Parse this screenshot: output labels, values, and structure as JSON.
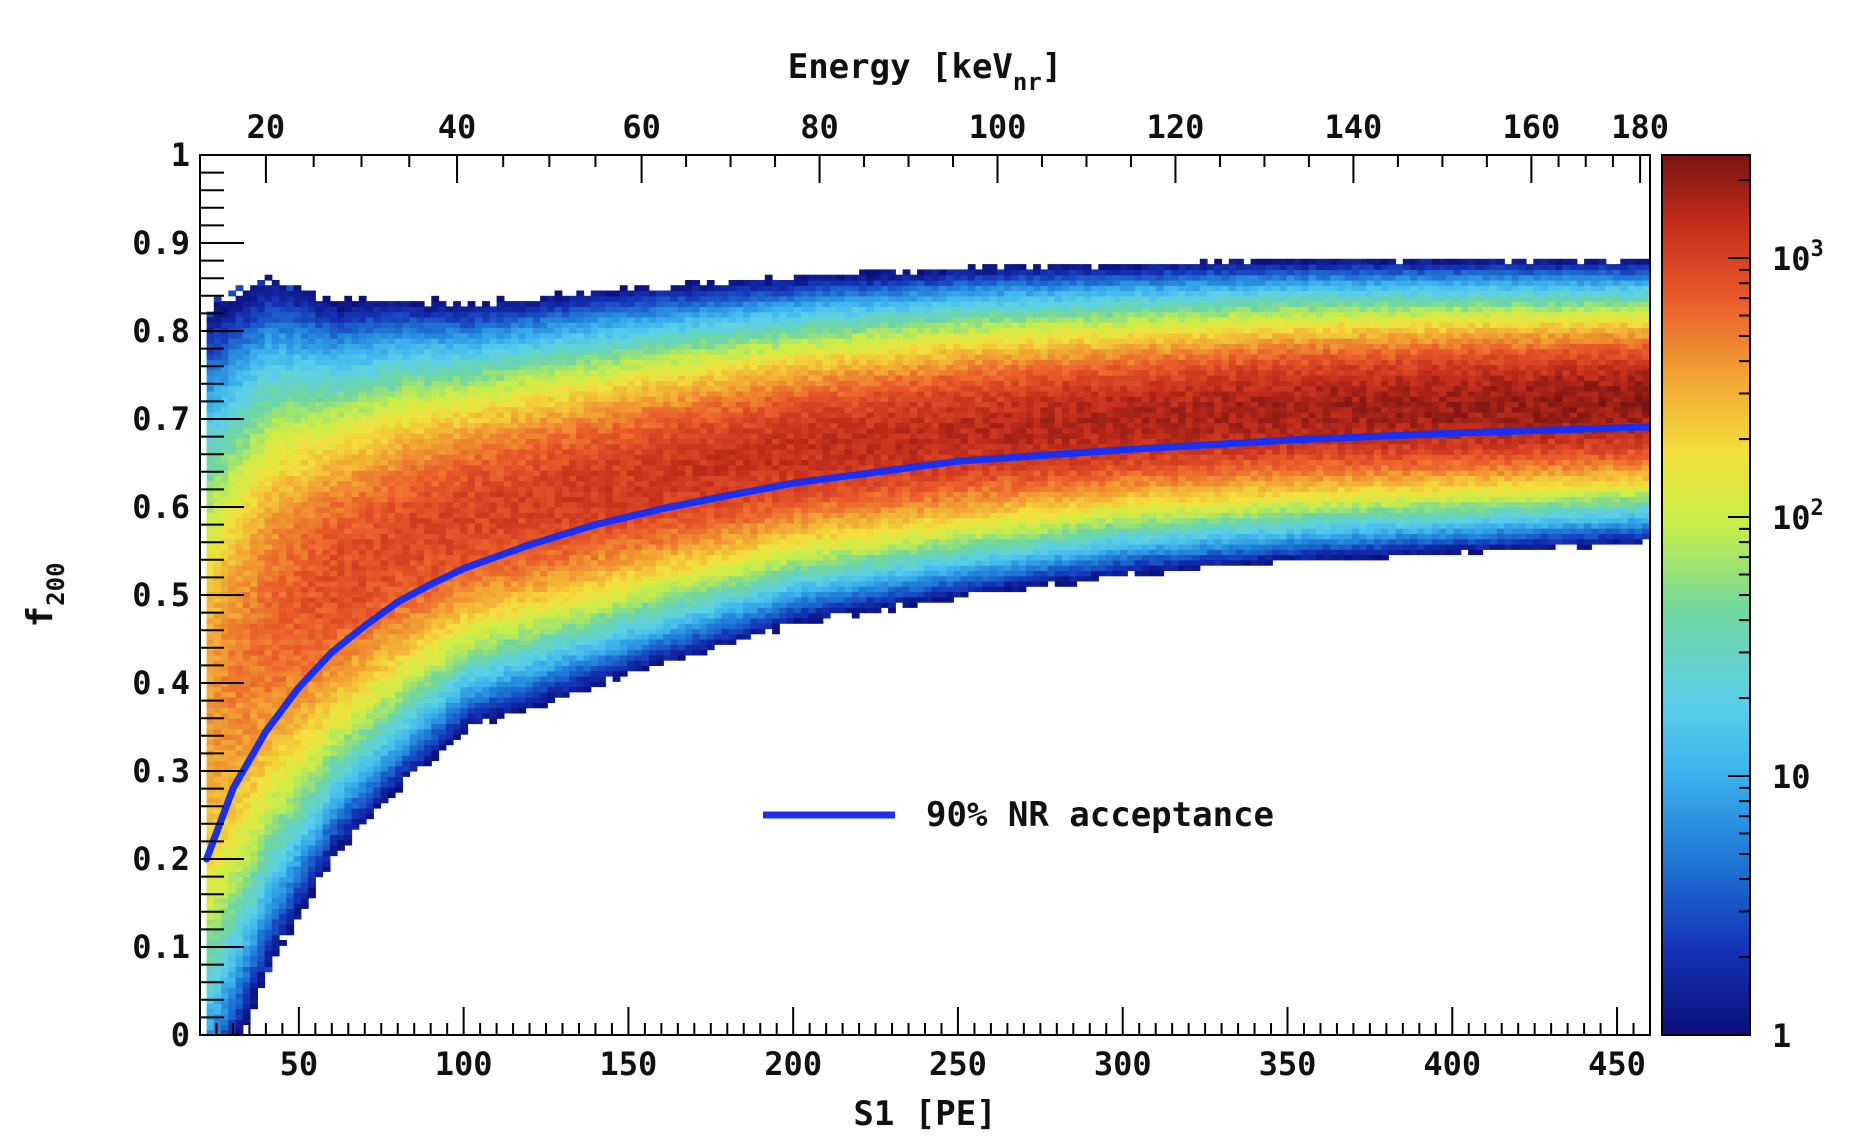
{
  "chart_data": {
    "type": "heatmap",
    "xlabel": "S1 [PE]",
    "ylabel_main": "f",
    "ylabel_sub": "200",
    "top_xlabel_main": "Energy [keV",
    "top_xlabel_sub": "nr",
    "top_xlabel_end": "]",
    "xlim": [
      20,
      460
    ],
    "ylim": [
      0,
      1
    ],
    "x_ticks": [
      50,
      100,
      150,
      200,
      250,
      300,
      350,
      400,
      450
    ],
    "y_ticks": [
      "0",
      "0.1",
      "0.2",
      "0.3",
      "0.4",
      "0.5",
      "0.6",
      "0.7",
      "0.8",
      "0.9",
      "1"
    ],
    "top_ticks": [
      {
        "label": "20",
        "s1": 40
      },
      {
        "label": "40",
        "s1": 98
      },
      {
        "label": "60",
        "s1": 154
      },
      {
        "label": "80",
        "s1": 208
      },
      {
        "label": "100",
        "s1": 262
      },
      {
        "label": "120",
        "s1": 316
      },
      {
        "label": "140",
        "s1": 370
      },
      {
        "label": "160",
        "s1": 424
      },
      {
        "label": "180",
        "s1": 457
      }
    ],
    "colorbar": {
      "scale": "log",
      "range": [
        1,
        2500
      ],
      "ticks": [
        {
          "label": "1",
          "value": 1,
          "exp": ""
        },
        {
          "label": "10",
          "value": 10,
          "exp": ""
        },
        {
          "label": "10",
          "value": 100,
          "exp": "2"
        },
        {
          "label": "10",
          "value": 1000,
          "exp": "3"
        }
      ]
    },
    "band": {
      "mean_f200": [
        [
          22,
          0.37
        ],
        [
          40,
          0.47
        ],
        [
          60,
          0.52
        ],
        [
          80,
          0.56
        ],
        [
          100,
          0.59
        ],
        [
          150,
          0.63
        ],
        [
          200,
          0.665
        ],
        [
          250,
          0.685
        ],
        [
          300,
          0.7
        ],
        [
          350,
          0.71
        ],
        [
          400,
          0.715
        ],
        [
          460,
          0.72
        ]
      ],
      "sigma_f200": [
        [
          22,
          0.13
        ],
        [
          60,
          0.085
        ],
        [
          100,
          0.065
        ],
        [
          200,
          0.052
        ],
        [
          300,
          0.046
        ],
        [
          460,
          0.041
        ]
      ]
    },
    "series": [
      {
        "name": "90% NR acceptance",
        "color": "#1a2ff0",
        "points": [
          [
            22,
            0.2
          ],
          [
            30,
            0.28
          ],
          [
            40,
            0.345
          ],
          [
            50,
            0.395
          ],
          [
            60,
            0.435
          ],
          [
            70,
            0.465
          ],
          [
            80,
            0.492
          ],
          [
            90,
            0.512
          ],
          [
            100,
            0.53
          ],
          [
            120,
            0.557
          ],
          [
            140,
            0.58
          ],
          [
            160,
            0.598
          ],
          [
            180,
            0.613
          ],
          [
            200,
            0.627
          ],
          [
            250,
            0.652
          ],
          [
            300,
            0.665
          ],
          [
            350,
            0.676
          ],
          [
            400,
            0.684
          ],
          [
            460,
            0.691
          ]
        ]
      }
    ],
    "legend": {
      "label": "90% NR acceptance",
      "position": "center-right"
    }
  }
}
